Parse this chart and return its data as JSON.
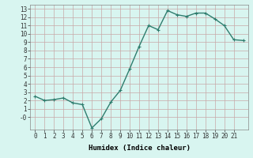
{
  "title": "",
  "xlabel": "Humidex (Indice chaleur)",
  "x": [
    0,
    1,
    2,
    3,
    4,
    5,
    6,
    7,
    8,
    9,
    10,
    11,
    12,
    13,
    14,
    15,
    16,
    17,
    18,
    19,
    20,
    21,
    22
  ],
  "y": [
    2.5,
    2.0,
    2.1,
    2.3,
    1.7,
    1.5,
    -1.3,
    -0.2,
    1.8,
    3.2,
    5.8,
    8.5,
    11.0,
    10.5,
    12.8,
    12.3,
    12.1,
    12.5,
    12.5,
    11.8,
    11.0,
    9.3,
    9.2
  ],
  "line_color": "#2e7d6e",
  "marker": "+",
  "marker_size": 3,
  "bg_color": "#d8f5f0",
  "grid_color": "#c8a8a8",
  "ylim": [
    -1.5,
    13.5
  ],
  "xlim": [
    -0.5,
    22.5
  ],
  "yticks": [
    0,
    1,
    2,
    3,
    4,
    5,
    6,
    7,
    8,
    9,
    10,
    11,
    12,
    13
  ],
  "ytick_labels": [
    "-0",
    "1",
    "2",
    "3",
    "4",
    "5",
    "6",
    "7",
    "8",
    "9",
    "10",
    "11",
    "12",
    "13"
  ],
  "xticks": [
    0,
    1,
    2,
    3,
    4,
    5,
    6,
    7,
    8,
    9,
    10,
    11,
    12,
    13,
    14,
    15,
    16,
    17,
    18,
    19,
    20,
    21
  ],
  "tick_fontsize": 5.5,
  "xlabel_fontsize": 6.5,
  "line_width": 1.0
}
